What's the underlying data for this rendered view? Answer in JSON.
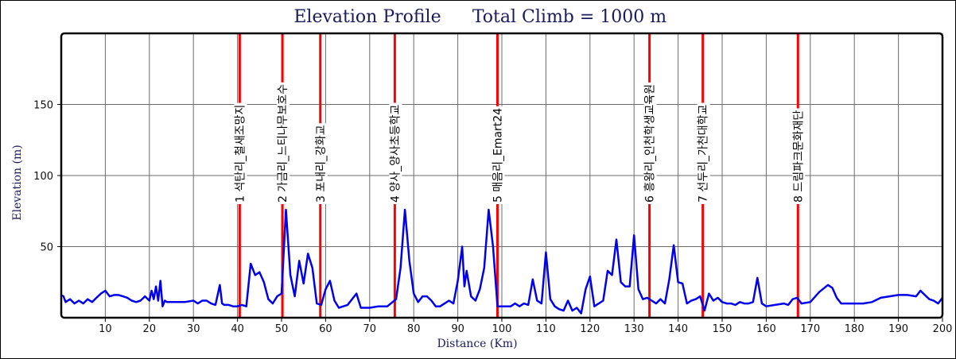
{
  "chart_data": {
    "type": "line",
    "title": "Elevation Profile",
    "subtitle": "Total Climb = 1000 m",
    "xlabel": "Distance (Km)",
    "ylabel": "Elevation (m)",
    "xlim": [
      0,
      200
    ],
    "ylim": [
      0,
      200
    ],
    "x_ticks": [
      10,
      20,
      30,
      40,
      50,
      60,
      70,
      80,
      90,
      100,
      110,
      120,
      130,
      140,
      150,
      160,
      170,
      180,
      190,
      200
    ],
    "y_ticks": [
      50,
      100,
      150
    ],
    "grid": true,
    "series": [
      {
        "color": "#0000ee",
        "points": [
          [
            0,
            16
          ],
          [
            0.5,
            15
          ],
          [
            1,
            11
          ],
          [
            2,
            13
          ],
          [
            3,
            10
          ],
          [
            4,
            12
          ],
          [
            5,
            10
          ],
          [
            6,
            13
          ],
          [
            7,
            11
          ],
          [
            8,
            14
          ],
          [
            9,
            17
          ],
          [
            10,
            19
          ],
          [
            11,
            15
          ],
          [
            12,
            16
          ],
          [
            13,
            16
          ],
          [
            14,
            15
          ],
          [
            15,
            14
          ],
          [
            16,
            12
          ],
          [
            17,
            11
          ],
          [
            18,
            12
          ],
          [
            19,
            15
          ],
          [
            20,
            12
          ],
          [
            20.5,
            19
          ],
          [
            21,
            13
          ],
          [
            21.5,
            22
          ],
          [
            22,
            12
          ],
          [
            22.5,
            26
          ],
          [
            23,
            8
          ],
          [
            23.5,
            12
          ],
          [
            24,
            11
          ],
          [
            26,
            11
          ],
          [
            28,
            11
          ],
          [
            30,
            12
          ],
          [
            31,
            10
          ],
          [
            32,
            12
          ],
          [
            33,
            12
          ],
          [
            34,
            10
          ],
          [
            35,
            9
          ],
          [
            36,
            23
          ],
          [
            36.5,
            10
          ],
          [
            37,
            9
          ],
          [
            38,
            9
          ],
          [
            39,
            8
          ],
          [
            40,
            8
          ],
          [
            41,
            9
          ],
          [
            42,
            8
          ],
          [
            43,
            38
          ],
          [
            44,
            30
          ],
          [
            45,
            32
          ],
          [
            46,
            25
          ],
          [
            47,
            13
          ],
          [
            48,
            10
          ],
          [
            49,
            15
          ],
          [
            50,
            17
          ],
          [
            51,
            76
          ],
          [
            52,
            30
          ],
          [
            53,
            15
          ],
          [
            54,
            40
          ],
          [
            55,
            24
          ],
          [
            56,
            45
          ],
          [
            57,
            35
          ],
          [
            58,
            10
          ],
          [
            59,
            9
          ],
          [
            60,
            20
          ],
          [
            61,
            26
          ],
          [
            62,
            12
          ],
          [
            63,
            7
          ],
          [
            64,
            8
          ],
          [
            65,
            9
          ],
          [
            66,
            13
          ],
          [
            67,
            17
          ],
          [
            68,
            7
          ],
          [
            70,
            7
          ],
          [
            72,
            8
          ],
          [
            74,
            8
          ],
          [
            76,
            13
          ],
          [
            77,
            35
          ],
          [
            78,
            76
          ],
          [
            79,
            40
          ],
          [
            80,
            17
          ],
          [
            81,
            11
          ],
          [
            82,
            15
          ],
          [
            83,
            15
          ],
          [
            84,
            12
          ],
          [
            85,
            8
          ],
          [
            86,
            8
          ],
          [
            88,
            12
          ],
          [
            89,
            10
          ],
          [
            90,
            26
          ],
          [
            91,
            50
          ],
          [
            91.5,
            22
          ],
          [
            92,
            33
          ],
          [
            93,
            15
          ],
          [
            94,
            12
          ],
          [
            95,
            20
          ],
          [
            96,
            35
          ],
          [
            97,
            76
          ],
          [
            98,
            50
          ],
          [
            99,
            8
          ],
          [
            100,
            8
          ],
          [
            102,
            8
          ],
          [
            103,
            10
          ],
          [
            104,
            8
          ],
          [
            105,
            10
          ],
          [
            106,
            9
          ],
          [
            107,
            27
          ],
          [
            108,
            12
          ],
          [
            109,
            10
          ],
          [
            110,
            46
          ],
          [
            111,
            13
          ],
          [
            112,
            8
          ],
          [
            113,
            6
          ],
          [
            114,
            5
          ],
          [
            115,
            12
          ],
          [
            116,
            5
          ],
          [
            117,
            7
          ],
          [
            118,
            3
          ],
          [
            119,
            20
          ],
          [
            120,
            29
          ],
          [
            121,
            8
          ],
          [
            122,
            10
          ],
          [
            123,
            12
          ],
          [
            124,
            33
          ],
          [
            125,
            30
          ],
          [
            126,
            55
          ],
          [
            127,
            25
          ],
          [
            128,
            22
          ],
          [
            129,
            22
          ],
          [
            130,
            58
          ],
          [
            131,
            20
          ],
          [
            132,
            13
          ],
          [
            133,
            14
          ],
          [
            134,
            12
          ],
          [
            135,
            10
          ],
          [
            136,
            13
          ],
          [
            137,
            10
          ],
          [
            138,
            27
          ],
          [
            139,
            51
          ],
          [
            140,
            25
          ],
          [
            141,
            24
          ],
          [
            142,
            10
          ],
          [
            143,
            12
          ],
          [
            144,
            13
          ],
          [
            145,
            15
          ],
          [
            146,
            5
          ],
          [
            147,
            17
          ],
          [
            148,
            12
          ],
          [
            149,
            14
          ],
          [
            150,
            11
          ],
          [
            151,
            10
          ],
          [
            152,
            10
          ],
          [
            153,
            9
          ],
          [
            154,
            11
          ],
          [
            155,
            10
          ],
          [
            156,
            10
          ],
          [
            157,
            11
          ],
          [
            158,
            28
          ],
          [
            159,
            10
          ],
          [
            160,
            8
          ],
          [
            162,
            9
          ],
          [
            164,
            10
          ],
          [
            165,
            9
          ],
          [
            166,
            13
          ],
          [
            167,
            14
          ],
          [
            168,
            10
          ],
          [
            170,
            11
          ],
          [
            172,
            18
          ],
          [
            174,
            23
          ],
          [
            175,
            21
          ],
          [
            176,
            14
          ],
          [
            177,
            10
          ],
          [
            178,
            10
          ],
          [
            180,
            10
          ],
          [
            182,
            10
          ],
          [
            184,
            11
          ],
          [
            186,
            14
          ],
          [
            188,
            15
          ],
          [
            190,
            16
          ],
          [
            192,
            16
          ],
          [
            194,
            15
          ],
          [
            195,
            19
          ],
          [
            196,
            16
          ],
          [
            197,
            13
          ],
          [
            198,
            12
          ],
          [
            199,
            10
          ],
          [
            200,
            14
          ]
        ]
      }
    ],
    "checkpoints": [
      {
        "x": 40.5,
        "label": "1 석탄리_철새조망지"
      },
      {
        "x": 50.2,
        "label": "2 가금리_느티나무보호수"
      },
      {
        "x": 58.8,
        "label": "3 포내리_강화교"
      },
      {
        "x": 75.7,
        "label": "4 양사_양사초등학교"
      },
      {
        "x": 99.0,
        "label": "5 매음리_Emart24"
      },
      {
        "x": 133.5,
        "label": "6 흥왕리_인천학생교육원"
      },
      {
        "x": 145.6,
        "label": "7 선두리_가천대학교"
      },
      {
        "x": 167.2,
        "label": "8 드림파크문화재단"
      }
    ],
    "checkpoint_color": "#ff0000"
  }
}
